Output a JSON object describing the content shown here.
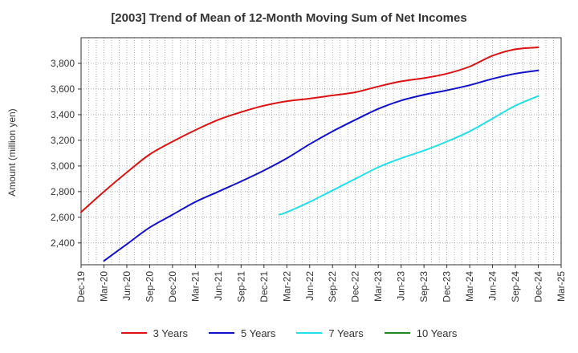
{
  "title": "[2003]  Trend of Mean of 12-Month Moving Sum of Net Incomes",
  "chart_data": {
    "type": "line",
    "title": "[2003]  Trend of Mean of 12-Month Moving Sum of Net Incomes",
    "xlabel": "",
    "ylabel": "Amount (million yen)",
    "ylim": [
      2230,
      4000
    ],
    "yticks": [
      2400,
      2600,
      2800,
      3000,
      3200,
      3400,
      3600,
      3800
    ],
    "ytick_labels": [
      "2,400",
      "2,600",
      "2,800",
      "3,000",
      "3,200",
      "3,400",
      "3,600",
      "3,800"
    ],
    "xticks": [
      "Dec-19",
      "Mar-20",
      "Jun-20",
      "Sep-20",
      "Dec-20",
      "Mar-21",
      "Jun-21",
      "Sep-21",
      "Dec-21",
      "Mar-22",
      "Jun-22",
      "Sep-22",
      "Dec-22",
      "Mar-23",
      "Jun-23",
      "Sep-23",
      "Dec-23",
      "Mar-24",
      "Jun-24",
      "Sep-24",
      "Dec-24",
      "Mar-25"
    ],
    "grid": true,
    "legend_position": "bottom",
    "series": [
      {
        "name": "3 Years",
        "color": "#dd1111",
        "values": [
          [
            "Dec-19",
            2640
          ],
          [
            "Mar-20",
            2800
          ],
          [
            "Jun-20",
            2950
          ],
          [
            "Sep-20",
            3090
          ],
          [
            "Dec-20",
            3190
          ],
          [
            "Mar-21",
            3280
          ],
          [
            "Jun-21",
            3360
          ],
          [
            "Sep-21",
            3420
          ],
          [
            "Dec-21",
            3470
          ],
          [
            "Mar-22",
            3505
          ],
          [
            "Jun-22",
            3525
          ],
          [
            "Sep-22",
            3550
          ],
          [
            "Dec-22",
            3575
          ],
          [
            "Mar-23",
            3620
          ],
          [
            "Jun-23",
            3660
          ],
          [
            "Sep-23",
            3685
          ],
          [
            "Dec-23",
            3720
          ],
          [
            "Mar-24",
            3775
          ],
          [
            "Jun-24",
            3860
          ],
          [
            "Sep-24",
            3910
          ],
          [
            "Dec-24",
            3925
          ]
        ]
      },
      {
        "name": "5 Years",
        "color": "#1111cc",
        "values": [
          [
            "Mar-20",
            2260
          ],
          [
            "Jun-20",
            2390
          ],
          [
            "Sep-20",
            2520
          ],
          [
            "Dec-20",
            2620
          ],
          [
            "Mar-21",
            2720
          ],
          [
            "Jun-21",
            2800
          ],
          [
            "Sep-21",
            2880
          ],
          [
            "Dec-21",
            2965
          ],
          [
            "Mar-22",
            3060
          ],
          [
            "Jun-22",
            3170
          ],
          [
            "Sep-22",
            3270
          ],
          [
            "Dec-22",
            3360
          ],
          [
            "Mar-23",
            3445
          ],
          [
            "Jun-23",
            3510
          ],
          [
            "Sep-23",
            3555
          ],
          [
            "Dec-23",
            3590
          ],
          [
            "Mar-24",
            3630
          ],
          [
            "Jun-24",
            3680
          ],
          [
            "Sep-24",
            3720
          ],
          [
            "Dec-24",
            3745
          ]
        ]
      },
      {
        "name": "7 Years",
        "color": "#22e0e8",
        "values": [
          [
            "Feb-22",
            2620
          ],
          [
            "Mar-22",
            2640
          ],
          [
            "Jun-22",
            2720
          ],
          [
            "Sep-22",
            2810
          ],
          [
            "Dec-22",
            2900
          ],
          [
            "Mar-23",
            2990
          ],
          [
            "Jun-23",
            3060
          ],
          [
            "Sep-23",
            3120
          ],
          [
            "Dec-23",
            3190
          ],
          [
            "Mar-24",
            3270
          ],
          [
            "Jun-24",
            3370
          ],
          [
            "Sep-24",
            3470
          ],
          [
            "Dec-24",
            3545
          ]
        ]
      },
      {
        "name": "10 Years",
        "color": "#228822",
        "values": []
      }
    ]
  }
}
